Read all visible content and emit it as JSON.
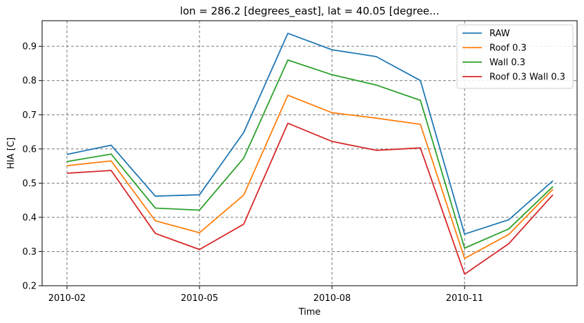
{
  "chart_data": {
    "type": "line",
    "title": "lon = 286.2 [degrees_east], lat = 40.05 [degree...",
    "xlabel": "Time",
    "ylabel": "HIA [C]",
    "x": [
      "2010-02",
      "2010-03",
      "2010-04",
      "2010-05",
      "2010-06",
      "2010-07",
      "2010-08",
      "2010-09",
      "2010-10",
      "2010-11",
      "2010-12",
      "2011-01"
    ],
    "x_ticks": [
      "2010-02",
      "2010-05",
      "2010-08",
      "2010-11"
    ],
    "y_ticks": [
      "0.2",
      "0.3",
      "0.4",
      "0.5",
      "0.6",
      "0.7",
      "0.8",
      "0.9"
    ],
    "ylim": [
      0.2,
      0.975
    ],
    "grid": true,
    "legend_position": "top-right",
    "series": [
      {
        "name": "RAW",
        "color": "#1f77b4",
        "values": [
          0.584,
          0.611,
          0.462,
          0.466,
          0.648,
          0.938,
          0.89,
          0.87,
          0.8,
          0.351,
          0.393,
          0.507
        ]
      },
      {
        "name": "Roof 0.3",
        "color": "#ff7f0e",
        "values": [
          0.551,
          0.565,
          0.39,
          0.355,
          0.465,
          0.757,
          0.706,
          0.69,
          0.672,
          0.28,
          0.35,
          0.482
        ]
      },
      {
        "name": "Wall 0.3",
        "color": "#2ca02c",
        "values": [
          0.563,
          0.585,
          0.427,
          0.421,
          0.573,
          0.86,
          0.817,
          0.787,
          0.742,
          0.31,
          0.366,
          0.49
        ]
      },
      {
        "name": "Roof 0.3 Wall 0.3",
        "color": "#d62728",
        "values": [
          0.529,
          0.537,
          0.353,
          0.306,
          0.38,
          0.675,
          0.622,
          0.596,
          0.603,
          0.234,
          0.323,
          0.466
        ]
      }
    ]
  }
}
